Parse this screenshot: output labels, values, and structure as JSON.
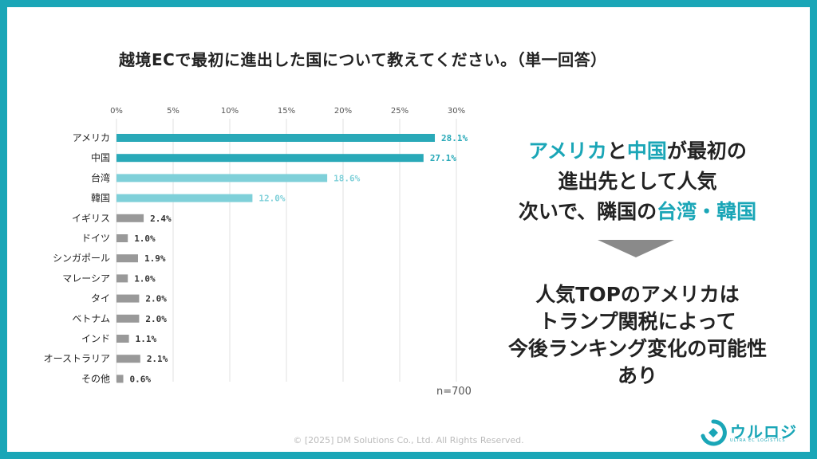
{
  "title": "越境ECで最初に進出した国について教えてください。（単一回答）",
  "chart_data": {
    "type": "bar",
    "orientation": "horizontal",
    "categories": [
      "アメリカ",
      "中国",
      "台湾",
      "韓国",
      "イギリス",
      "ドイツ",
      "シンガポール",
      "マレーシア",
      "タイ",
      "ベトナム",
      "インド",
      "オーストラリア",
      "その他"
    ],
    "values": [
      28.1,
      27.1,
      18.6,
      12.0,
      2.4,
      1.0,
      1.9,
      1.0,
      2.0,
      2.0,
      1.1,
      2.1,
      0.6
    ],
    "value_labels": [
      "28.1%",
      "27.1%",
      "18.6%",
      "12.0%",
      "2.4%",
      "1.0%",
      "1.9%",
      "1.0%",
      "2.0%",
      "2.0%",
      "1.1%",
      "2.1%",
      "0.6%"
    ],
    "xticks": [
      "0%",
      "5%",
      "10%",
      "15%",
      "20%",
      "25%",
      "30%"
    ],
    "xlim": [
      0,
      30
    ],
    "grid": true,
    "colors": [
      "#29a9b8",
      "#29a9b8",
      "#7fd0d9",
      "#7fd0d9",
      "#999999",
      "#999999",
      "#999999",
      "#999999",
      "#999999",
      "#999999",
      "#999999",
      "#999999",
      "#999999"
    ],
    "label_colors": [
      "#29a9b8",
      "#29a9b8",
      "#7fd0d9",
      "#7fd0d9",
      "#333333",
      "#333333",
      "#333333",
      "#333333",
      "#333333",
      "#333333",
      "#333333",
      "#333333",
      "#333333"
    ],
    "note": "n=700"
  },
  "headline": {
    "line1_a": "アメリカ",
    "line1_b": "と",
    "line1_c": "中国",
    "line1_d": "が最初の",
    "line2": "進出先として人気",
    "line3_a": "次いで、隣国の",
    "line3_b": "台湾・韓国"
  },
  "conclusion": {
    "line1": "人気TOPのアメリカは",
    "line2": "トランプ関税によって",
    "line3": "今後ランキング変化の可能性",
    "line4": "あり"
  },
  "copyright": "© [2025] DM Solutions Co., Ltd. All Rights Reserved.",
  "logo": {
    "name": "ウルロジ",
    "sub": "ULTRA EC LOGISTICS"
  },
  "colors": {
    "accent": "#1aa6b7",
    "gray_bar": "#999999",
    "arrow": "#8a8a8a"
  }
}
